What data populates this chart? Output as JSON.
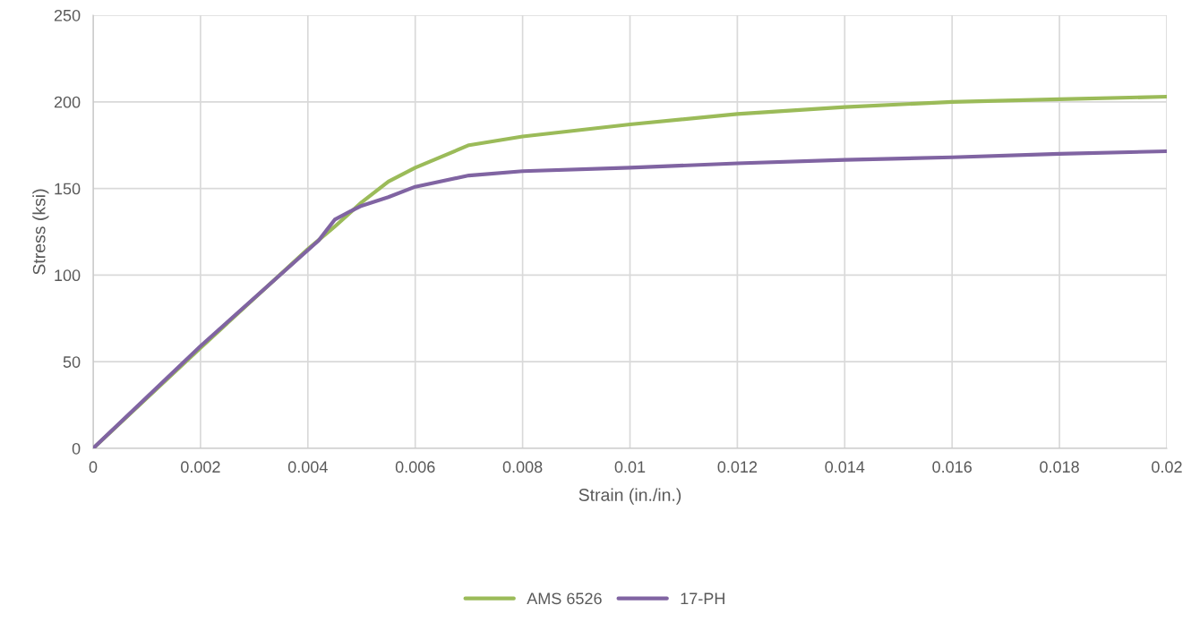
{
  "chart_data": {
    "type": "line",
    "xlabel": "Strain (in./in.)",
    "ylabel": "Stress (ksi)",
    "xlim": [
      0,
      0.02
    ],
    "xticks": [
      0,
      0.002,
      0.004,
      0.006,
      0.008,
      0.01,
      0.012,
      0.014,
      0.016,
      0.018,
      0.02
    ],
    "ylim": [
      0,
      250
    ],
    "yticks": [
      0,
      50,
      100,
      150,
      200,
      250
    ],
    "grid": true,
    "legend": "bottom",
    "marker": "none",
    "line_style": "solid",
    "series": [
      {
        "name": "AMS 6526",
        "color": "#9bbb59",
        "x": [
          0,
          0.002,
          0.004,
          0.0045,
          0.005,
          0.0055,
          0.006,
          0.007,
          0.008,
          0.01,
          0.012,
          0.014,
          0.016,
          0.018,
          0.02
        ],
        "values": [
          0,
          58,
          115,
          128,
          142,
          154,
          162,
          175,
          180,
          187,
          193,
          197,
          200,
          201.5,
          203
        ]
      },
      {
        "name": "17-PH",
        "color": "#8064a2",
        "x": [
          0,
          0.002,
          0.0042,
          0.0045,
          0.0048,
          0.005,
          0.0055,
          0.006,
          0.007,
          0.008,
          0.01,
          0.012,
          0.014,
          0.016,
          0.018,
          0.02
        ],
        "values": [
          0,
          59,
          120,
          132,
          137,
          140,
          145,
          151,
          157.5,
          160,
          162,
          164.5,
          166.5,
          168,
          170,
          171.5
        ]
      }
    ]
  }
}
